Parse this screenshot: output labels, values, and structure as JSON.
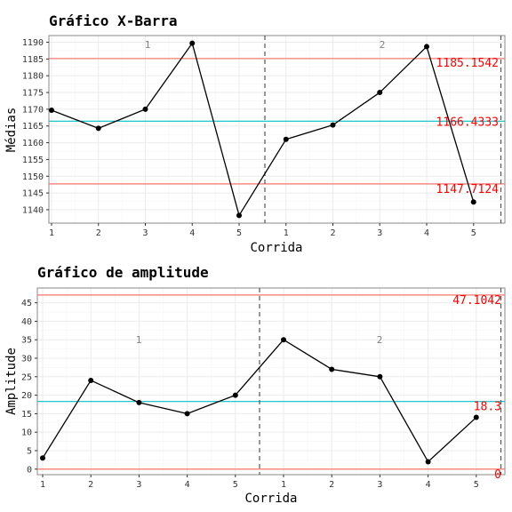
{
  "colors": {
    "limit": "#f8766d",
    "center": "#00bfc4",
    "limit_text": "#ff0000",
    "line": "#000000",
    "grid_major": "#ebebeb",
    "grid_minor": "#f5f5f5",
    "panel_border": "#888888",
    "phase_divider": "#555555"
  },
  "chart_data": [
    {
      "type": "line",
      "title": "Gráfico X-Barra",
      "xlabel": "Corrida",
      "ylabel": "Médias",
      "x": [
        "1",
        "2",
        "3",
        "4",
        "5",
        "1",
        "2",
        "3",
        "4",
        "5"
      ],
      "values": [
        1169.7,
        1164.3,
        1170.0,
        1189.7,
        1138.3,
        1161.0,
        1165.3,
        1175.0,
        1188.7,
        1142.3
      ],
      "ylim": [
        1136,
        1192
      ],
      "yticks": [
        1140,
        1145,
        1150,
        1155,
        1160,
        1165,
        1170,
        1175,
        1180,
        1185,
        1190
      ],
      "phase_labels": [
        "1",
        "2"
      ],
      "ucl": 1185.1542,
      "cl": 1166.4333,
      "lcl": 1147.7124,
      "ucl_label": "1185.1542",
      "cl_label": "1166.4333",
      "lcl_label": "1147.7124",
      "grid": true
    },
    {
      "type": "line",
      "title": "Gráfico de amplitude",
      "xlabel": "Corrida",
      "ylabel": "Amplitude",
      "x": [
        "1",
        "2",
        "3",
        "4",
        "5",
        "1",
        "2",
        "3",
        "4",
        "5"
      ],
      "values": [
        3,
        24,
        18,
        15,
        20,
        35,
        27,
        25,
        2,
        14
      ],
      "ylim": [
        -1.5,
        49
      ],
      "yticks": [
        0,
        5,
        10,
        15,
        20,
        25,
        30,
        35,
        40,
        45
      ],
      "phase_labels": [
        "1",
        "2"
      ],
      "ucl": 47.1042,
      "cl": 18.3,
      "lcl": 0,
      "ucl_label": "47.1042",
      "cl_label": "18.3",
      "lcl_label": "0",
      "grid": true
    }
  ]
}
